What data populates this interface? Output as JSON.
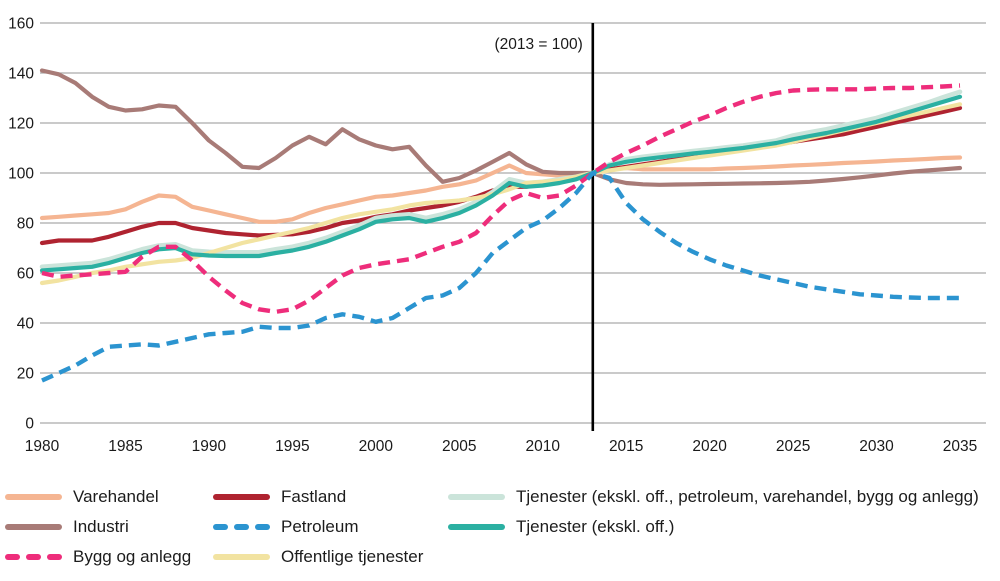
{
  "chart_data": {
    "type": "line",
    "annotation": "(2013 = 100)",
    "x_start": 1980,
    "x_step": 1,
    "xlim": [
      1980,
      2035
    ],
    "ylim": [
      0,
      160
    ],
    "y_ticks": [
      0,
      20,
      40,
      60,
      80,
      100,
      120,
      140,
      160
    ],
    "x_ticks": [
      1980,
      1985,
      1990,
      1995,
      2000,
      2005,
      2010,
      2015,
      2020,
      2025,
      2030,
      2035
    ],
    "reference_year": 2013,
    "grid": "horizontal-only",
    "legend_position": "bottom",
    "colors": {
      "grid": "#ababab",
      "reference_line": "#000000",
      "text": "#1a1a1a"
    },
    "series": [
      {
        "id": "varehandel",
        "name": "Varehandel",
        "color": "#f5b592",
        "dashed": false,
        "width": 4.2,
        "values": [
          82,
          82.5,
          83,
          83.5,
          84,
          85.5,
          88.5,
          91,
          90.5,
          86.5,
          85,
          83.5,
          82,
          80.5,
          80.5,
          81.5,
          84,
          86,
          87.5,
          89,
          90.5,
          91,
          92,
          93,
          94.5,
          95.5,
          97,
          100,
          103,
          100,
          99.5,
          99,
          99.5,
          100,
          101.5,
          102,
          101.5,
          101.5,
          101.5,
          101.5,
          101.5,
          101.8,
          102,
          102.3,
          102.6,
          103,
          103.3,
          103.6,
          104,
          104.3,
          104.6,
          105,
          105.3,
          105.6,
          106,
          106.2
        ]
      },
      {
        "id": "industri",
        "name": "Industri",
        "color": "#a87b77",
        "dashed": false,
        "width": 4.2,
        "values": [
          141,
          139.5,
          136,
          130.5,
          126.5,
          125,
          125.5,
          127,
          126.5,
          120,
          113,
          108,
          102.5,
          102,
          106,
          111,
          114.5,
          111.5,
          117.5,
          113.5,
          111,
          109.5,
          110.5,
          103,
          96.5,
          98,
          101,
          104.5,
          108,
          103.5,
          100.5,
          100,
          100,
          100,
          97.5,
          96,
          95.5,
          95.3,
          95.4,
          95.5,
          95.6,
          95.7,
          95.8,
          95.9,
          96,
          96.2,
          96.5,
          97,
          97.6,
          98.3,
          99,
          99.8,
          100.5,
          101,
          101.5,
          102
        ]
      },
      {
        "id": "fastland",
        "name": "Fastland",
        "color": "#af2330",
        "dashed": false,
        "width": 4.2,
        "values": [
          72,
          73,
          73,
          73,
          74.5,
          76.5,
          78.5,
          80,
          80,
          78,
          77,
          76,
          75.5,
          75,
          75.3,
          75.5,
          76.5,
          78,
          80,
          81,
          82.5,
          83.5,
          85,
          86,
          87,
          88.5,
          90.5,
          93,
          94.5,
          94.5,
          95.5,
          97,
          98.5,
          100,
          101.5,
          102.5,
          103.5,
          104.5,
          105.5,
          106.5,
          107.5,
          108.5,
          109.5,
          110.5,
          111.5,
          112.5,
          113.5,
          114.5,
          115.5,
          117,
          118.5,
          120,
          121.5,
          123,
          124.5,
          126
        ]
      },
      {
        "id": "tjenester_full",
        "name": "Tjenester (ekskl. off., petroleum, varehandel, bygg og anlegg)",
        "color": "#cbe4da",
        "dashed": false,
        "width": 4.6,
        "values": [
          62.5,
          63,
          63.5,
          64,
          65.5,
          67.5,
          69.5,
          71,
          71.5,
          69,
          68.5,
          68.3,
          68.3,
          68.3,
          69.5,
          70.5,
          72,
          74,
          76.5,
          79,
          82,
          83,
          83.5,
          82,
          83.5,
          85.5,
          88.5,
          92.5,
          97.5,
          96,
          96.5,
          97.5,
          98.5,
          100,
          103.5,
          105.5,
          106.5,
          107.3,
          108,
          108.8,
          109.5,
          110.3,
          111,
          112,
          113,
          115,
          116.3,
          117.5,
          119,
          120.5,
          122,
          124,
          126,
          128,
          130.3,
          132.5
        ]
      },
      {
        "id": "offentlige",
        "name": "Offentlige tjenester",
        "color": "#f2e3a1",
        "dashed": false,
        "width": 4.2,
        "values": [
          56,
          57,
          58.5,
          60,
          61,
          62.5,
          63.5,
          64.5,
          65,
          66,
          68,
          70,
          72,
          73.5,
          75,
          76.5,
          78,
          80,
          82,
          83.5,
          84.5,
          85.5,
          87,
          88,
          88.5,
          89,
          90,
          91.5,
          93.5,
          96,
          96.5,
          97,
          98.5,
          100,
          101,
          102,
          103,
          104,
          105,
          106,
          107,
          108,
          109,
          110,
          111,
          112.5,
          114,
          115.5,
          117,
          118.5,
          120,
          121.5,
          123,
          124.5,
          126,
          127.5
        ]
      },
      {
        "id": "tjenester_ekskl_off",
        "name": "Tjenester (ekskl. off.)",
        "color": "#2bb0a2",
        "dashed": false,
        "width": 4.2,
        "values": [
          61,
          61.5,
          62,
          62.5,
          64,
          66,
          68,
          69.5,
          70,
          67.5,
          67,
          66.8,
          66.8,
          66.8,
          68,
          69,
          70.5,
          72.5,
          75,
          77.5,
          80.5,
          81.5,
          82,
          80.5,
          82,
          84,
          87,
          91,
          96,
          94.5,
          95,
          96,
          97.5,
          100,
          103,
          104.5,
          105.5,
          106.3,
          107,
          107.8,
          108.5,
          109.3,
          110,
          111,
          112,
          113.5,
          114.8,
          116,
          117.5,
          119,
          120.5,
          122.5,
          124.5,
          126.5,
          128.5,
          130.5
        ]
      },
      {
        "id": "bygg",
        "name": "Bygg og anlegg",
        "color": "#ee2d7b",
        "dashed": true,
        "width": 4.4,
        "values": [
          60,
          58.5,
          59,
          59.5,
          60,
          60.5,
          66.5,
          70.5,
          70.5,
          65,
          58.5,
          53,
          48,
          45.5,
          44.5,
          45.5,
          49,
          54,
          59,
          62,
          63.5,
          64.5,
          65.5,
          68,
          70.5,
          72.5,
          76,
          83,
          89,
          92,
          90,
          91,
          95,
          100,
          104.5,
          108,
          111,
          114.5,
          117.5,
          120.5,
          123,
          126,
          128.5,
          130.5,
          132,
          133,
          133.3,
          133.5,
          133.5,
          133.5,
          133.8,
          134,
          134,
          134.3,
          134.6,
          135
        ]
      },
      {
        "id": "petroleum",
        "name": "Petroleum",
        "color": "#2b94d0",
        "dashed": true,
        "width": 4.4,
        "values": [
          17,
          20,
          23,
          27,
          30.5,
          31,
          31.5,
          31,
          32.5,
          34,
          35.5,
          36,
          36.5,
          38.5,
          38,
          38,
          39,
          42,
          43.5,
          42.5,
          40.5,
          42,
          46,
          50,
          51,
          54,
          60,
          68,
          73,
          78,
          81,
          86,
          92,
          100,
          98,
          88,
          81.5,
          76.5,
          72,
          68.5,
          65.5,
          63,
          61,
          59,
          57.5,
          56,
          54.5,
          53.5,
          52.5,
          51.5,
          51,
          50.5,
          50.2,
          50,
          50,
          50
        ]
      }
    ],
    "legend_columns": [
      {
        "items": [
          {
            "label": "Varehandel",
            "series": "varehandel"
          },
          {
            "label": "Industri",
            "series": "industri"
          },
          {
            "label": "Bygg og anlegg",
            "series": "bygg"
          }
        ]
      },
      {
        "items": [
          {
            "label": "Fastland",
            "series": "fastland"
          },
          {
            "label": "Petroleum",
            "series": "petroleum"
          },
          {
            "label": "Offentlige tjenester",
            "series": "offentlige"
          }
        ]
      },
      {
        "items": [
          {
            "label": "Tjenester (ekskl. off., petroleum, varehandel, bygg og anlegg)",
            "series": "tjenester_full"
          },
          {
            "label": "Tjenester (ekskl. off.)",
            "series": "tjenester_ekskl_off"
          }
        ]
      }
    ]
  }
}
